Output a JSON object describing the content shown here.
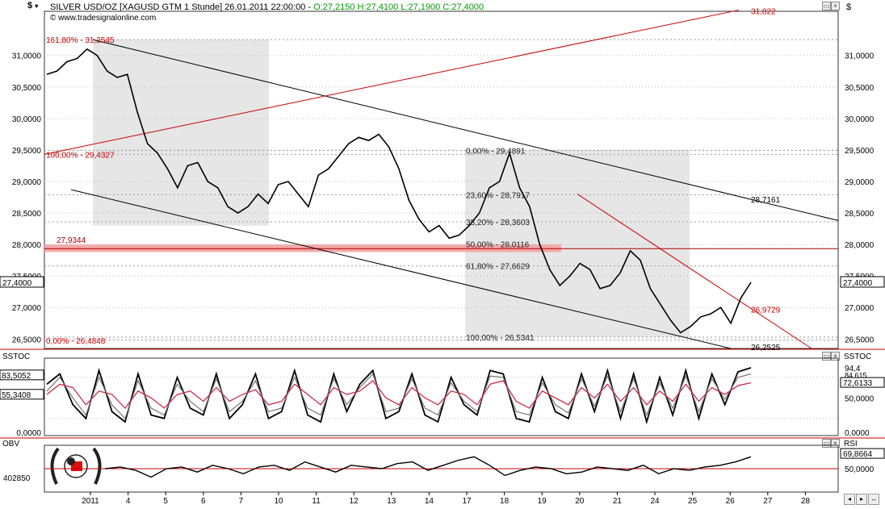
{
  "header": {
    "currency_menu": "$",
    "title": "SILVER USD/OZ [XAGUSD GTM  1 Stunde] 26.01.2011 22:00:00 -",
    "ohlc": "O:27,2150 H:27,4100 L:27,1900 C:27,4000",
    "source": "© www.tradesignalonline.com"
  },
  "panes": {
    "price": {
      "label_left": "$",
      "label_right": "$"
    },
    "sstoc": {
      "label_left": "SSTOC",
      "label_right": "SSTOC"
    },
    "obv": {
      "label_left": "OBV",
      "label_right": "RSI"
    }
  },
  "chart_data": [
    {
      "type": "line",
      "name_label": "SILVER USD/OZ",
      "ylim": [
        26.35,
        31.7
      ],
      "y_ticks": [
        "31,0000",
        "30,5000",
        "30,0000",
        "29,5000",
        "29,0000",
        "28,5000",
        "28,0000",
        "27,5000",
        "27,0000",
        "26,5000"
      ],
      "y_tick_values": [
        31.0,
        30.5,
        30.0,
        29.5,
        29.0,
        28.5,
        28.0,
        27.5,
        27.0,
        26.5
      ],
      "x_ticks": [
        "2011",
        "4",
        "5",
        "6",
        "7",
        "10",
        "11",
        "12",
        "13",
        "14",
        "17",
        "18",
        "19",
        "20",
        "21",
        "24",
        "25",
        "26",
        "27",
        "28"
      ],
      "last_value_label": "27,4000",
      "series": [
        {
          "values": [
            30.7,
            30.75,
            30.9,
            30.95,
            31.1,
            31.0,
            30.75,
            30.65,
            30.7,
            30.1,
            29.6,
            29.45,
            29.2,
            28.9,
            29.25,
            29.3,
            29.0,
            28.9,
            28.6,
            28.5,
            28.6,
            28.8,
            28.65,
            28.95,
            29.0,
            28.8,
            28.6,
            29.1,
            29.2,
            29.4,
            29.6,
            29.7,
            29.65,
            29.75,
            29.55,
            29.2,
            28.7,
            28.4,
            28.2,
            28.3,
            28.1,
            28.15,
            28.3,
            28.5,
            28.9,
            29.0,
            29.45,
            28.9,
            28.6,
            28.0,
            27.6,
            27.35,
            27.5,
            27.7,
            27.6,
            27.3,
            27.35,
            27.55,
            27.9,
            27.75,
            27.3,
            27.05,
            26.8,
            26.6,
            26.7,
            26.85,
            26.9,
            27.0,
            26.75,
            27.15,
            27.4
          ]
        }
      ],
      "annotations": {
        "fib_left": [
          "161,80% - 31,2545",
          "100,00% - 29,4327",
          "0,00% - 26,4848"
        ],
        "fib_right": [
          "0,00% - 29,4891",
          "23,60% - 28,7917",
          "38,20% - 28,3603",
          "50,00% - 28,0116",
          "61,80% - 27,6629",
          "100,00% - 26,5341"
        ],
        "levels": [
          "27,9344",
          "28,7161",
          "26,9729",
          "31,822",
          "26,2525"
        ]
      }
    },
    {
      "type": "line",
      "name_label": "SSTOC",
      "ylim": [
        -5,
        108
      ],
      "y_ticks": [
        "50,0000",
        "0,0000"
      ],
      "y_tick_values": [
        50,
        0
      ],
      "value_labels": [
        "94,4",
        "84,615",
        "72,6133",
        "83,5052",
        "55,3408"
      ],
      "series": [
        {
          "values": [
            70,
            85,
            40,
            20,
            90,
            30,
            15,
            85,
            25,
            20,
            80,
            35,
            25,
            85,
            20,
            40,
            85,
            20,
            30,
            90,
            25,
            15,
            85,
            30,
            70,
            90,
            20,
            30,
            85,
            25,
            15,
            80,
            40,
            25,
            90,
            85,
            20,
            15,
            80,
            30,
            20,
            85,
            30,
            90,
            20,
            85,
            15,
            80,
            25,
            90,
            20,
            85,
            40,
            88,
            94
          ]
        },
        {
          "values": [
            60,
            80,
            50,
            25,
            80,
            40,
            20,
            75,
            35,
            25,
            70,
            45,
            30,
            78,
            30,
            45,
            75,
            30,
            35,
            80,
            35,
            25,
            78,
            40,
            65,
            85,
            30,
            35,
            78,
            35,
            25,
            72,
            45,
            30,
            82,
            80,
            30,
            25,
            72,
            40,
            28,
            78,
            38,
            82,
            30,
            78,
            25,
            72,
            35,
            82,
            30,
            78,
            48,
            80,
            85
          ]
        },
        {
          "values": [
            55,
            70,
            65,
            40,
            60,
            55,
            35,
            60,
            50,
            35,
            55,
            60,
            45,
            65,
            45,
            55,
            62,
            40,
            45,
            70,
            55,
            40,
            65,
            55,
            60,
            75,
            50,
            40,
            65,
            50,
            40,
            60,
            55,
            40,
            70,
            75,
            45,
            35,
            60,
            50,
            40,
            65,
            50,
            70,
            45,
            65,
            40,
            60,
            45,
            70,
            45,
            65,
            55,
            68,
            72
          ]
        }
      ]
    },
    {
      "type": "line",
      "name_label": "OBV",
      "value_label": "402850",
      "rsi_labels": [
        "69,8664",
        "50,0000"
      ],
      "rsi_tick_values": [
        69.8664,
        50
      ],
      "series": [
        {
          "values": [
            0.5,
            0.55,
            0.45,
            0.25,
            0.5,
            0.55,
            0.4,
            0.6,
            0.5,
            0.35,
            0.55,
            0.6,
            0.45,
            0.7,
            0.55,
            0.4,
            0.6,
            0.55,
            0.5,
            0.65,
            0.7,
            0.45,
            0.6,
            0.75,
            0.85,
            0.6,
            0.3,
            0.45,
            0.55,
            0.5,
            0.35,
            0.4,
            0.55,
            0.5,
            0.45,
            0.6,
            0.35,
            0.5,
            0.45,
            0.55,
            0.6,
            0.7,
            0.85
          ]
        }
      ]
    }
  ],
  "colors": {
    "price": "#000000",
    "fib": "#cc0000",
    "band": "#f4a9a9",
    "shade": "#e6e6e6",
    "stoch2": "#777777",
    "stoch3": "#cc1e3c"
  }
}
